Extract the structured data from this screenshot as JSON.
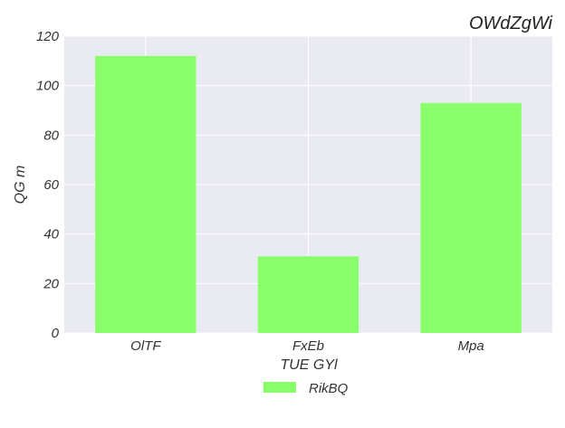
{
  "chart_data": {
    "type": "bar",
    "title": "OWdZgWi",
    "xlabel": "TUE GYl",
    "ylabel": "QG m",
    "categories": [
      "OlTF",
      "FxEb",
      "Mpa"
    ],
    "series": [
      {
        "name": "RikBQ",
        "values": [
          112,
          31,
          93
        ],
        "color": "#88ff6b"
      }
    ],
    "ylim": [
      0,
      120
    ],
    "yticks": [
      0,
      20,
      40,
      60,
      80,
      100,
      120
    ],
    "grid": true,
    "legend": "bottom-center",
    "colors": {
      "plot_background": "#eaeaf2",
      "grid": "#ffffff"
    }
  }
}
